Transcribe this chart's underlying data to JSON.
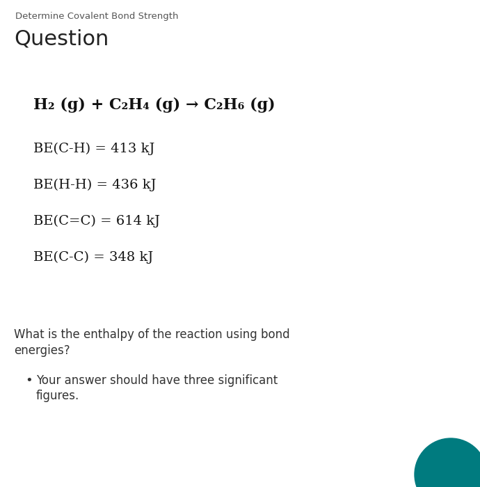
{
  "background_color": "#ffffff",
  "subtitle": "Determine Covalent Bond Strength",
  "title": "Question",
  "equation": "H₂ (g) + C₂H₄ (g) → C₂H₆ (g)",
  "bond_energies": [
    "BE(C-H) = 413 kJ",
    "BE(H-H) = 436 kJ",
    "BE(C=C) = 614 kJ",
    "BE(C-C) = 348 kJ"
  ],
  "question_text_line1": "What is the enthalpy of the reaction using bond",
  "question_text_line2": "energies?",
  "bullet_text_line1": "Your answer should have three significant",
  "bullet_text_line2": "figures.",
  "teal_circle_color": "#007B7F",
  "subtitle_color": "#555555",
  "title_color": "#222222",
  "body_color": "#333333",
  "subtitle_fontsize": 9.5,
  "title_fontsize": 22,
  "equation_fontsize": 16,
  "be_fontsize": 14,
  "body_fontsize": 12
}
